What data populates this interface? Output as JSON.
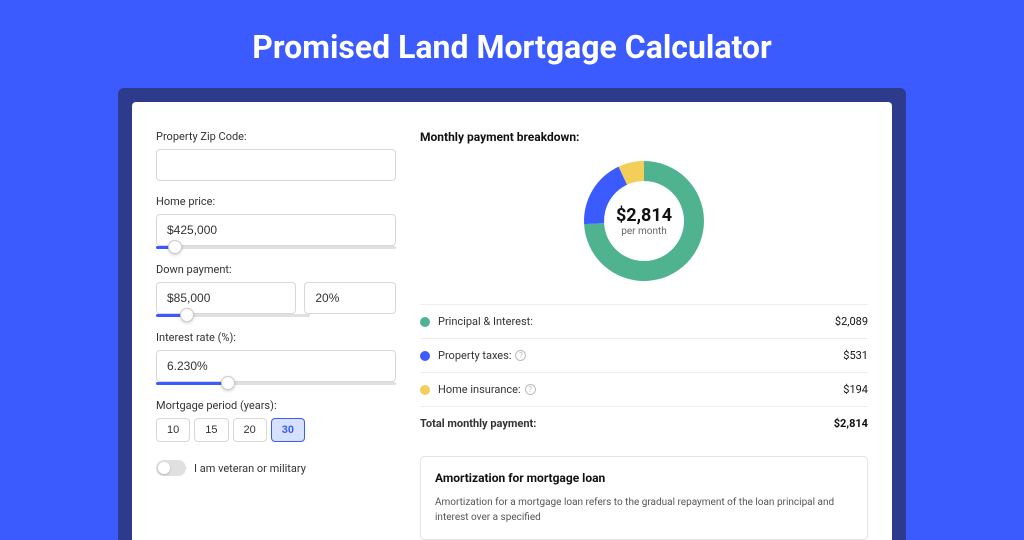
{
  "page": {
    "title": "Promised Land Mortgage Calculator",
    "background_color": "#3b5bff",
    "shadow_color": "#2e3a8c",
    "card_bg": "#ffffff"
  },
  "form": {
    "zip": {
      "label": "Property Zip Code:",
      "value": ""
    },
    "home_price": {
      "label": "Home price:",
      "value": "$425,000",
      "slider_pct": 8
    },
    "down_payment": {
      "label": "Down payment:",
      "amount": "$85,000",
      "percent": "20%",
      "slider_pct": 20
    },
    "interest_rate": {
      "label": "Interest rate (%):",
      "value": "6.230%",
      "slider_pct": 30
    },
    "mortgage_period": {
      "label": "Mortgage period (years):",
      "options": [
        "10",
        "15",
        "20",
        "30"
      ],
      "active_index": 3
    },
    "veteran": {
      "label": "I am veteran or military",
      "checked": false
    }
  },
  "breakdown": {
    "title": "Monthly payment breakdown:",
    "center_amount": "$2,814",
    "center_sub": "per month",
    "donut": {
      "size": 130,
      "thickness": 20,
      "slices": [
        {
          "label": "Principal & Interest",
          "value": 2089,
          "color": "#4fb38f",
          "start_deg": 0,
          "end_deg": 267
        },
        {
          "label": "Property taxes",
          "value": 531,
          "color": "#3b5bff",
          "start_deg": 267,
          "end_deg": 335
        },
        {
          "label": "Home insurance",
          "value": 194,
          "color": "#f3cf5a",
          "start_deg": 335,
          "end_deg": 360
        }
      ]
    },
    "rows": [
      {
        "dot_color": "#4fb38f",
        "label": "Principal & Interest:",
        "value": "$2,089",
        "info": false
      },
      {
        "dot_color": "#3b5bff",
        "label": "Property taxes:",
        "value": "$531",
        "info": true
      },
      {
        "dot_color": "#f3cf5a",
        "label": "Home insurance:",
        "value": "$194",
        "info": true
      }
    ],
    "total": {
      "label": "Total monthly payment:",
      "value": "$2,814"
    }
  },
  "amortization": {
    "title": "Amortization for mortgage loan",
    "text": "Amortization for a mortgage loan refers to the gradual repayment of the loan principal and interest over a specified"
  }
}
